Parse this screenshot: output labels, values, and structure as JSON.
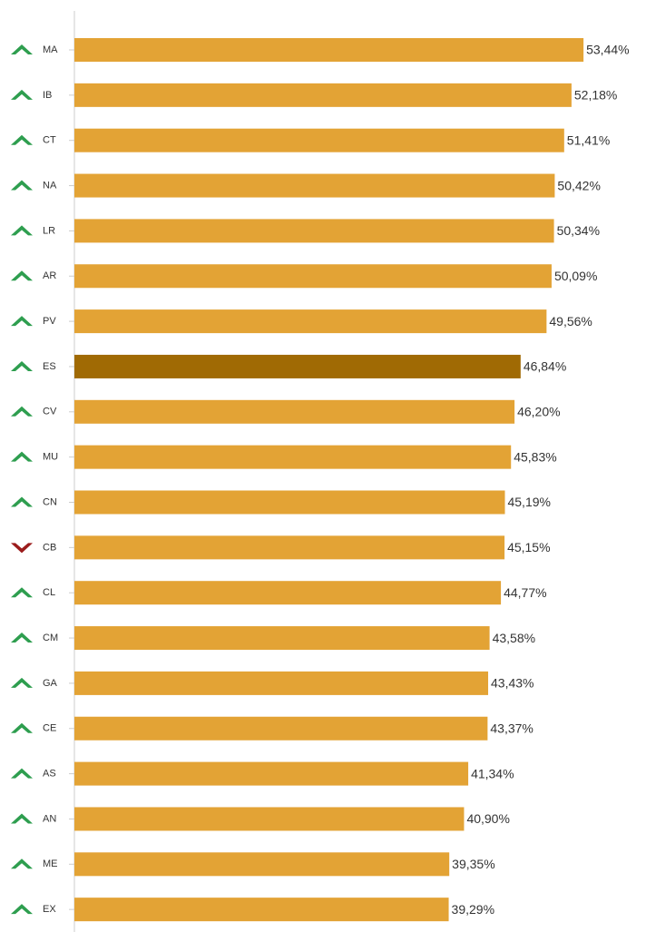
{
  "chart_data": {
    "type": "bar",
    "orientation": "horizontal",
    "categories": [
      "MA",
      "IB",
      "CT",
      "NA",
      "LR",
      "AR",
      "PV",
      "ES",
      "CV",
      "MU",
      "CN",
      "CB",
      "CL",
      "CM",
      "GA",
      "CE",
      "AS",
      "AN",
      "ME",
      "EX"
    ],
    "values": [
      53.44,
      52.18,
      51.41,
      50.42,
      50.34,
      50.09,
      49.56,
      46.84,
      46.2,
      45.83,
      45.19,
      45.15,
      44.77,
      43.58,
      43.43,
      43.37,
      41.34,
      40.9,
      39.35,
      39.29
    ],
    "value_labels": [
      "53,44%",
      "52,18%",
      "51,41%",
      "50,42%",
      "50,34%",
      "50,09%",
      "49,56%",
      "46,84%",
      "46,20%",
      "45,83%",
      "45,19%",
      "45,15%",
      "44,77%",
      "43,58%",
      "43,43%",
      "43,37%",
      "41,34%",
      "40,90%",
      "39,35%",
      "39,29%"
    ],
    "colors": [
      "#e3a335",
      "#e3a335",
      "#e3a335",
      "#e3a335",
      "#e3a335",
      "#e3a335",
      "#e3a335",
      "#a06a04",
      "#e3a335",
      "#e3a335",
      "#e3a335",
      "#e3a335",
      "#e3a335",
      "#e3a335",
      "#e3a335",
      "#e3a335",
      "#e3a335",
      "#e3a335",
      "#e3a335",
      "#e3a335"
    ],
    "trend": [
      "up",
      "up",
      "up",
      "up",
      "up",
      "up",
      "up",
      "up",
      "up",
      "up",
      "up",
      "down",
      "up",
      "up",
      "up",
      "up",
      "up",
      "up",
      "up",
      "up"
    ],
    "trend_colors": {
      "up": "#2e9e4f",
      "down": "#9b1c1c"
    },
    "xlim": [
      0,
      60
    ]
  }
}
